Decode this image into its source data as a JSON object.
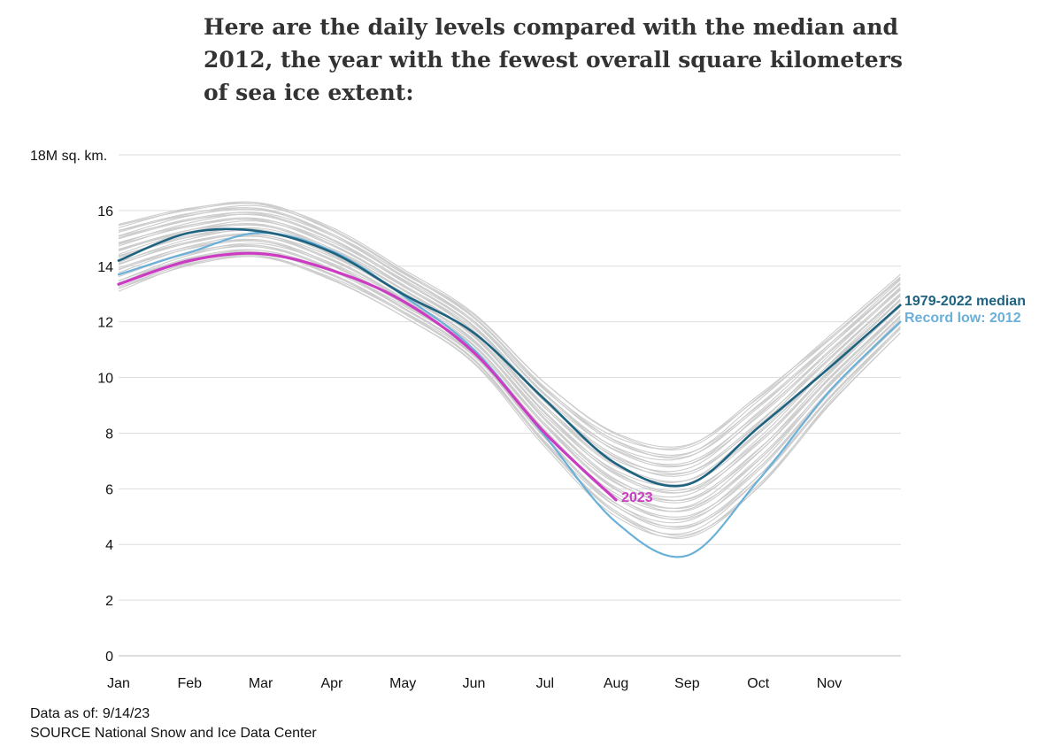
{
  "title": "Here are the daily levels compared with the median and 2012, the year with the fewest overall square kilometers of sea ice extent:",
  "footer": {
    "data_as_of": "Data as of: 9/14/23",
    "source": "SOURCE National Snow and Ice Data Center"
  },
  "colors": {
    "median": "#1d6380",
    "record_low": "#6ab0d8",
    "current": "#cc3cc3",
    "historical": "#cccccc",
    "grid": "#dddddd"
  },
  "chart_data": {
    "type": "line",
    "ylim": [
      0,
      18
    ],
    "y_ticks": [
      {
        "value": 0,
        "label": "0"
      },
      {
        "value": 2,
        "label": "2"
      },
      {
        "value": 4,
        "label": "4"
      },
      {
        "value": 6,
        "label": "6"
      },
      {
        "value": 8,
        "label": "8"
      },
      {
        "value": 10,
        "label": "10"
      },
      {
        "value": 12,
        "label": "12"
      },
      {
        "value": 14,
        "label": "14"
      },
      {
        "value": 16,
        "label": "16"
      },
      {
        "value": 18,
        "label": "18M sq. km."
      }
    ],
    "x_ticks": [
      "Jan",
      "Feb",
      "Mar",
      "Apr",
      "May",
      "Jun",
      "Jul",
      "Aug",
      "Sep",
      "Oct",
      "Nov"
    ],
    "xlim": [
      0,
      11
    ],
    "historical_range": {
      "x": [
        0,
        1,
        2,
        3,
        4,
        5,
        6,
        7,
        8,
        9,
        10,
        11
      ],
      "low": [
        13.1,
        14.0,
        14.3,
        13.5,
        12.2,
        10.5,
        7.5,
        5.0,
        4.2,
        6.0,
        9.0,
        11.6
      ],
      "high": [
        15.5,
        16.1,
        16.3,
        15.4,
        13.9,
        12.3,
        9.8,
        8.0,
        7.6,
        9.4,
        11.5,
        13.7
      ]
    },
    "series": [
      {
        "name": "1979-2022 median",
        "x": [
          0,
          1,
          2,
          3,
          4,
          5,
          6,
          7,
          8,
          9,
          10,
          11
        ],
        "values": [
          14.2,
          15.2,
          15.25,
          14.5,
          13.0,
          11.6,
          9.2,
          6.9,
          6.15,
          8.2,
          10.35,
          12.6
        ]
      },
      {
        "name": "Record low: 2012",
        "x": [
          0,
          1,
          2,
          3,
          4,
          5,
          6,
          7,
          8,
          9,
          10,
          11
        ],
        "values": [
          13.7,
          14.5,
          15.2,
          14.55,
          12.95,
          11.0,
          7.9,
          4.8,
          3.6,
          6.3,
          9.5,
          12.0
        ]
      },
      {
        "name": "2023",
        "x": [
          0,
          1,
          2,
          3,
          4,
          5,
          6,
          7
        ],
        "values": [
          13.35,
          14.2,
          14.45,
          13.85,
          12.75,
          10.9,
          8.0,
          5.6
        ]
      }
    ],
    "labels": {
      "median": "1979-2022 median",
      "record_low": "Record low: 2012",
      "current": "2023"
    },
    "grid": true
  }
}
